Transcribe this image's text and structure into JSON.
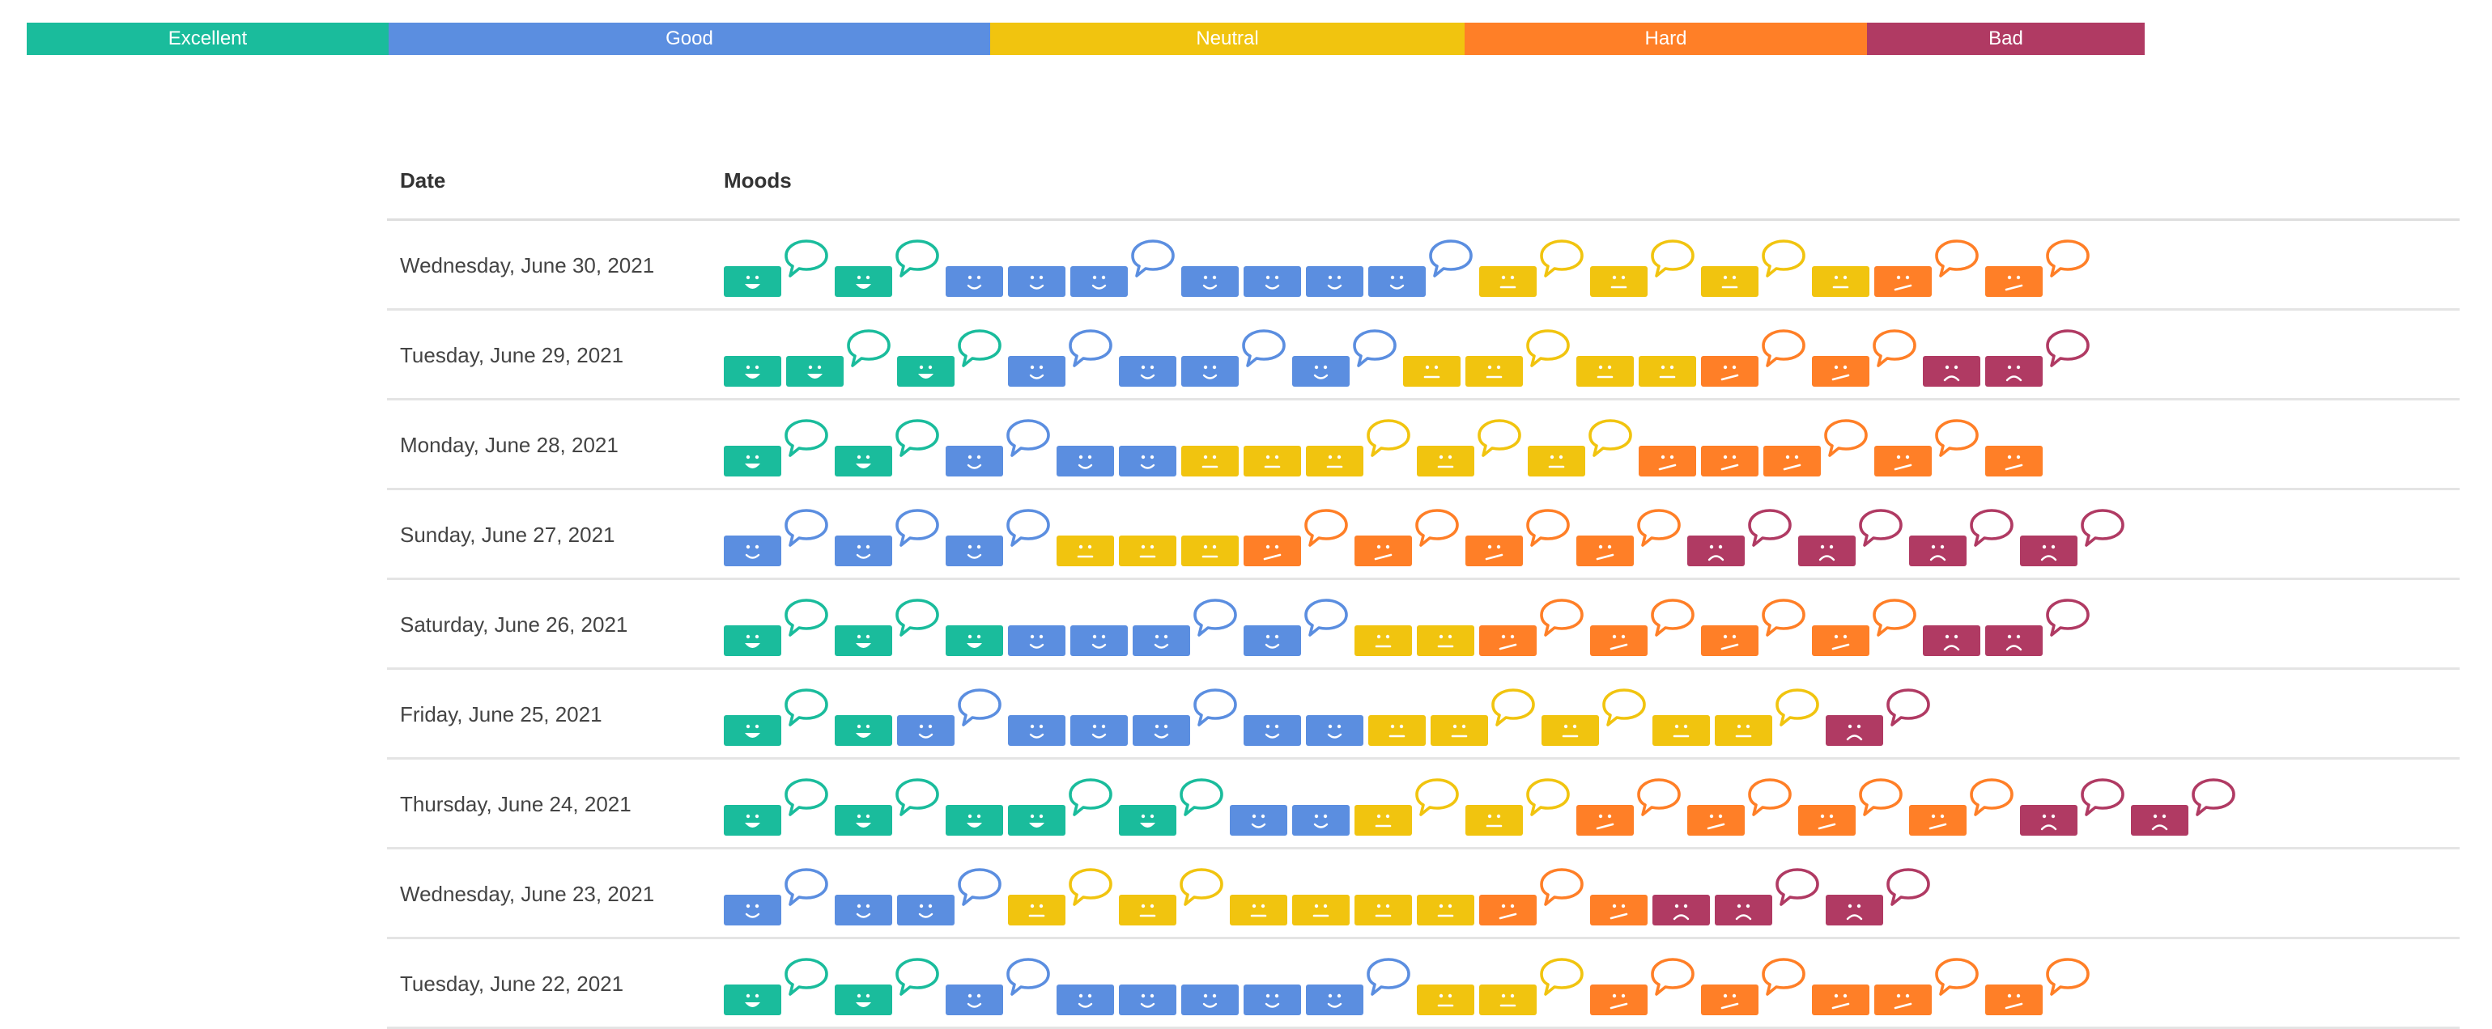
{
  "legend": [
    {
      "label": "Excellent",
      "color": "#1abc9c",
      "share": 0.171
    },
    {
      "label": "Good",
      "color": "#5b8ee0",
      "share": 0.284
    },
    {
      "label": "Neutral",
      "color": "#f1c40f",
      "share": 0.224
    },
    {
      "label": "Hard",
      "color": "#ff7f27",
      "share": 0.19
    },
    {
      "label": "Bad",
      "color": "#b03a63",
      "share": 0.131
    }
  ],
  "table": {
    "date_header": "Date",
    "moods_header": "Moods",
    "rows": [
      {
        "date": "Wednesday, June 30, 2021",
        "moods": [
          "e+",
          "e+",
          "g",
          "g",
          "g+",
          "g",
          "g",
          "g",
          "g+",
          "n+",
          "n+",
          "n+",
          "n",
          "h+",
          "h+"
        ]
      },
      {
        "date": "Tuesday, June 29, 2021",
        "moods": [
          "e",
          "e+",
          "e+",
          "g+",
          "g",
          "g+",
          "g+",
          "n",
          "n+",
          "n",
          "n",
          "h+",
          "h+",
          "b",
          "b+"
        ]
      },
      {
        "date": "Monday, June 28, 2021",
        "moods": [
          "e+",
          "e+",
          "g+",
          "g",
          "g",
          "n",
          "n",
          "n+",
          "n+",
          "n+",
          "h",
          "h",
          "h+",
          "h+",
          "h"
        ]
      },
      {
        "date": "Sunday, June 27, 2021",
        "moods": [
          "g+",
          "g+",
          "g+",
          "n",
          "n",
          "n",
          "h+",
          "h+",
          "h+",
          "h+",
          "b+",
          "b+",
          "b+",
          "b+"
        ]
      },
      {
        "date": "Saturday, June 26, 2021",
        "moods": [
          "e+",
          "e+",
          "e",
          "g",
          "g",
          "g+",
          "g+",
          "n",
          "n",
          "h+",
          "h+",
          "h+",
          "h+",
          "b",
          "b+"
        ]
      },
      {
        "date": "Friday, June 25, 2021",
        "moods": [
          "e+",
          "e",
          "g+",
          "g",
          "g",
          "g+",
          "g",
          "g",
          "n",
          "n+",
          "n+",
          "n",
          "n+",
          "b+"
        ]
      },
      {
        "date": "Thursday, June 24, 2021",
        "moods": [
          "e+",
          "e+",
          "e",
          "e+",
          "e+",
          "g",
          "g",
          "n+",
          "n+",
          "h+",
          "h+",
          "h+",
          "h+",
          "b+",
          "b+"
        ]
      },
      {
        "date": "Wednesday, June 23, 2021",
        "moods": [
          "g+",
          "g",
          "g+",
          "n+",
          "n+",
          "n",
          "n",
          "n",
          "n",
          "h+",
          "h",
          "b",
          "b+",
          "b+"
        ]
      },
      {
        "date": "Tuesday, June 22, 2021",
        "moods": [
          "e+",
          "e+",
          "g+",
          "g",
          "g",
          "g",
          "g",
          "g+",
          "n",
          "n+",
          "h+",
          "h+",
          "h",
          "h+",
          "h+"
        ]
      }
    ]
  },
  "mood_colors": {
    "e": "#1abc9c",
    "g": "#5b8ee0",
    "n": "#f1c40f",
    "h": "#ff7f27",
    "b": "#b03a63"
  },
  "mood_names": {
    "e": "excellent",
    "g": "good",
    "n": "neutral",
    "h": "hard",
    "b": "bad"
  }
}
